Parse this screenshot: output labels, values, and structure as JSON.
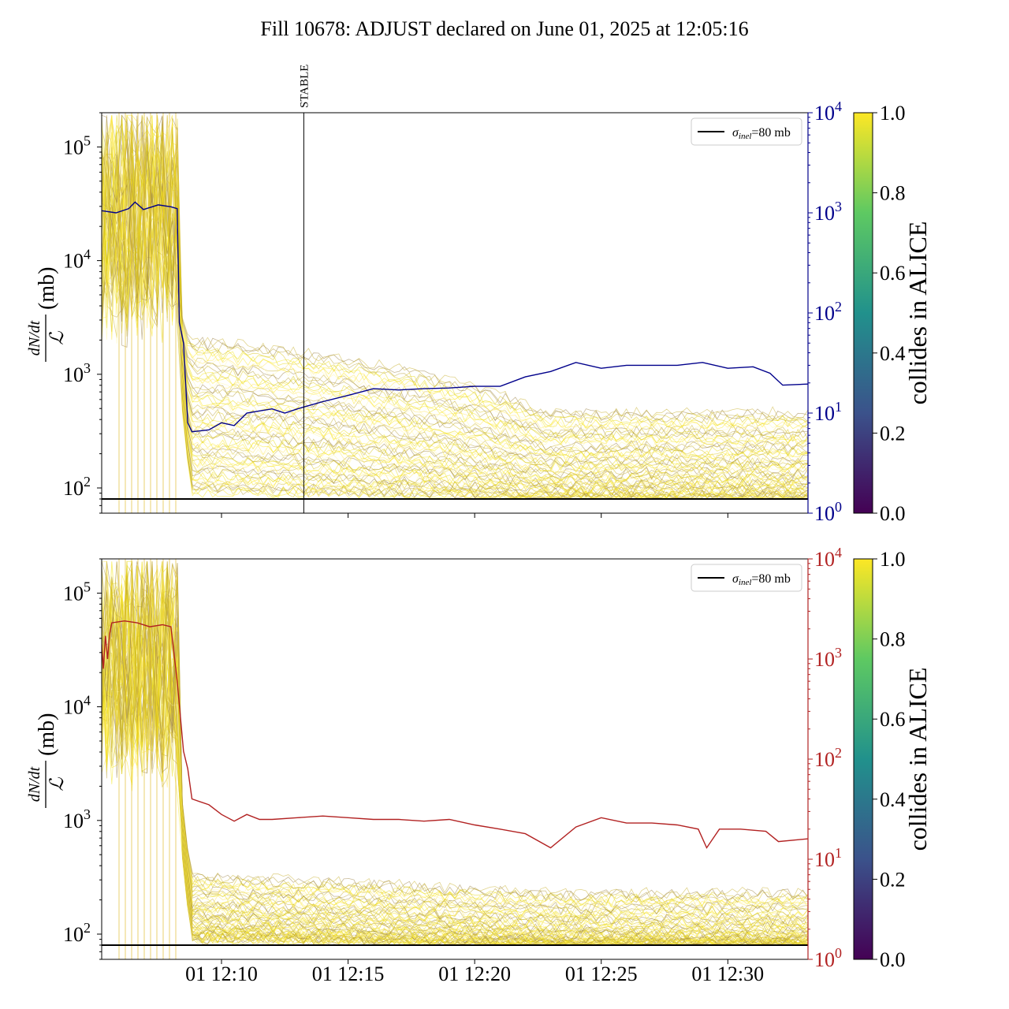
{
  "figure": {
    "title": "Fill 10678: ADJUST declared on June 01, 2025 at 12:05:16",
    "x_tick_labels": [
      "01 12:10",
      "01 12:15",
      "01 12:20",
      "01 12:25",
      "01 12:30"
    ],
    "colors": {
      "top_right_axis": "#00008b",
      "bottom_right_axis": "#b22222",
      "reference_line": "#000000",
      "viridis": [
        "#440154",
        "#3b528b",
        "#21918c",
        "#5ec962",
        "#fde725"
      ]
    }
  },
  "chart_data": [
    {
      "type": "line",
      "panel": "top",
      "ylabel_left": "dN/dt / L (mb)",
      "yscale_left": "log",
      "ylim_left": [
        60,
        200000
      ],
      "yticks_left": [
        {
          "base": "10",
          "exp": "2",
          "v": 100
        },
        {
          "base": "10",
          "exp": "3",
          "v": 1000
        },
        {
          "base": "10",
          "exp": "4",
          "v": 10000
        },
        {
          "base": "10",
          "exp": "5",
          "v": 100000
        }
      ],
      "yscale_right": "log",
      "ylim_right": [
        1,
        10000
      ],
      "yticks_right": [
        {
          "base": "10",
          "exp": "0",
          "v": 1
        },
        {
          "base": "10",
          "exp": "1",
          "v": 10
        },
        {
          "base": "10",
          "exp": "2",
          "v": 100
        },
        {
          "base": "10",
          "exp": "3",
          "v": 1000
        },
        {
          "base": "10",
          "exp": "4",
          "v": 10000
        }
      ],
      "x_range_minutes": [
        "12:05:16",
        "12:33:10"
      ],
      "marker": {
        "label": "STABLE",
        "time": "12:13:15"
      },
      "legend": {
        "label_sym": "σ",
        "label_sub": "inel",
        "label_rest": "=80 mb",
        "placement": "upper right"
      },
      "reference_line_value": 80,
      "colorbar": {
        "label": "collides in ALICE",
        "ticks": [
          "0.0",
          "0.2",
          "0.4",
          "0.6",
          "0.8",
          "1.0"
        ]
      },
      "right_series": {
        "color": "#00008b",
        "points": [
          [
            "12:05:16",
            1050
          ],
          [
            "12:05:50",
            1000
          ],
          [
            "12:06:20",
            1100
          ],
          [
            "12:06:35",
            1280
          ],
          [
            "12:06:55",
            1080
          ],
          [
            "12:07:30",
            1200
          ],
          [
            "12:08:00",
            1150
          ],
          [
            "12:08:15",
            1100
          ],
          [
            "12:08:20",
            80
          ],
          [
            "12:08:30",
            50
          ],
          [
            "12:08:40",
            8
          ],
          [
            "12:08:50",
            6.5
          ],
          [
            "12:09:30",
            6.8
          ],
          [
            "12:10:00",
            8
          ],
          [
            "12:10:30",
            7.5
          ],
          [
            "12:11:00",
            10
          ],
          [
            "12:11:30",
            10.5
          ],
          [
            "12:12:00",
            11
          ],
          [
            "12:12:30",
            10
          ],
          [
            "12:13:00",
            11
          ],
          [
            "12:13:15",
            11.5
          ],
          [
            "12:14:00",
            13
          ],
          [
            "12:15:00",
            15
          ],
          [
            "12:16:00",
            17.5
          ],
          [
            "12:17:00",
            17
          ],
          [
            "12:18:00",
            17.5
          ],
          [
            "12:19:00",
            17.8
          ],
          [
            "12:20:00",
            18.5
          ],
          [
            "12:21:00",
            18.5
          ],
          [
            "12:22:00",
            23
          ],
          [
            "12:23:00",
            26
          ],
          [
            "12:24:00",
            32
          ],
          [
            "12:25:00",
            28
          ],
          [
            "12:26:00",
            30
          ],
          [
            "12:27:00",
            30
          ],
          [
            "12:28:00",
            30
          ],
          [
            "12:29:00",
            32
          ],
          [
            "12:30:00",
            28
          ],
          [
            "12:31:00",
            29
          ],
          [
            "12:31:40",
            25
          ],
          [
            "12:32:10",
            19
          ],
          [
            "12:33:10",
            19.5
          ]
        ]
      }
    },
    {
      "type": "line",
      "panel": "bottom",
      "ylabel_left": "dN/dt / L (mb)",
      "yscale_left": "log",
      "ylim_left": [
        60,
        200000
      ],
      "yticks_left": [
        {
          "base": "10",
          "exp": "2",
          "v": 100
        },
        {
          "base": "10",
          "exp": "3",
          "v": 1000
        },
        {
          "base": "10",
          "exp": "4",
          "v": 10000
        },
        {
          "base": "10",
          "exp": "5",
          "v": 100000
        }
      ],
      "yscale_right": "log",
      "ylim_right": [
        1,
        10000
      ],
      "yticks_right": [
        {
          "base": "10",
          "exp": "0",
          "v": 1
        },
        {
          "base": "10",
          "exp": "1",
          "v": 10
        },
        {
          "base": "10",
          "exp": "2",
          "v": 100
        },
        {
          "base": "10",
          "exp": "3",
          "v": 1000
        },
        {
          "base": "10",
          "exp": "4",
          "v": 10000
        }
      ],
      "x_range_minutes": [
        "12:05:16",
        "12:33:10"
      ],
      "xticks": [
        "12:10",
        "12:15",
        "12:20",
        "12:25",
        "12:30"
      ],
      "legend": {
        "label_sym": "σ",
        "label_sub": "inel",
        "label_rest": "=80 mb",
        "placement": "upper right"
      },
      "reference_line_value": 80,
      "colorbar": {
        "label": "collides in ALICE",
        "ticks": [
          "0.0",
          "0.2",
          "0.4",
          "0.6",
          "0.8",
          "1.0"
        ]
      },
      "right_series": {
        "color": "#b22222",
        "points": [
          [
            "12:05:16",
            1400
          ],
          [
            "12:05:20",
            800
          ],
          [
            "12:05:25",
            1700
          ],
          [
            "12:05:30",
            1000
          ],
          [
            "12:05:35",
            1800
          ],
          [
            "12:05:40",
            2300
          ],
          [
            "12:06:10",
            2400
          ],
          [
            "12:06:40",
            2300
          ],
          [
            "12:07:10",
            2100
          ],
          [
            "12:07:40",
            2200
          ],
          [
            "12:08:00",
            2100
          ],
          [
            "12:08:15",
            600
          ],
          [
            "12:08:30",
            120
          ],
          [
            "12:08:40",
            80
          ],
          [
            "12:08:50",
            40
          ],
          [
            "12:09:30",
            35
          ],
          [
            "12:10:00",
            28
          ],
          [
            "12:10:30",
            24
          ],
          [
            "12:11:00",
            28
          ],
          [
            "12:11:30",
            25
          ],
          [
            "12:12:00",
            25
          ],
          [
            "12:13:00",
            26
          ],
          [
            "12:14:00",
            27
          ],
          [
            "12:15:00",
            26
          ],
          [
            "12:16:00",
            25
          ],
          [
            "12:17:00",
            25
          ],
          [
            "12:18:00",
            24
          ],
          [
            "12:19:00",
            25
          ],
          [
            "12:20:00",
            22
          ],
          [
            "12:21:00",
            20
          ],
          [
            "12:22:00",
            18
          ],
          [
            "12:23:00",
            13
          ],
          [
            "12:24:00",
            21
          ],
          [
            "12:25:00",
            26
          ],
          [
            "12:26:00",
            23
          ],
          [
            "12:27:00",
            23
          ],
          [
            "12:28:00",
            22
          ],
          [
            "12:28:50",
            20
          ],
          [
            "12:29:10",
            13
          ],
          [
            "12:29:40",
            20
          ],
          [
            "12:30:30",
            20
          ],
          [
            "12:31:30",
            19
          ],
          [
            "12:32:00",
            15
          ],
          [
            "12:33:10",
            16
          ]
        ]
      }
    }
  ]
}
